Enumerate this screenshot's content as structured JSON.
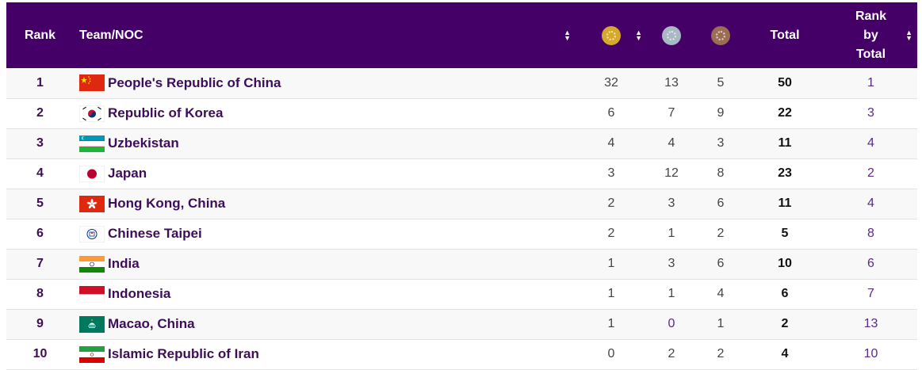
{
  "header": {
    "rank": "Rank",
    "team": "Team/NOC",
    "total": "Total",
    "rank_by_total_1": "Rank",
    "rank_by_total_2": "by",
    "rank_by_total_3": "Total",
    "medals": [
      "gold-medal-icon",
      "silver-medal-icon",
      "bronze-medal-icon"
    ]
  },
  "rows": [
    {
      "rank": "1",
      "team": "People's Republic of China",
      "gold": "32",
      "silver": "13",
      "bronze": "5",
      "total": "50",
      "rank_by_total": "1",
      "flag": "china-flag-icon"
    },
    {
      "rank": "2",
      "team": "Republic of Korea",
      "gold": "6",
      "silver": "7",
      "bronze": "9",
      "total": "22",
      "rank_by_total": "3",
      "flag": "korea-flag-icon"
    },
    {
      "rank": "3",
      "team": "Uzbekistan",
      "gold": "4",
      "silver": "4",
      "bronze": "3",
      "total": "11",
      "rank_by_total": "4",
      "flag": "uzbekistan-flag-icon"
    },
    {
      "rank": "4",
      "team": "Japan",
      "gold": "3",
      "silver": "12",
      "bronze": "8",
      "total": "23",
      "rank_by_total": "2",
      "flag": "japan-flag-icon"
    },
    {
      "rank": "5",
      "team": "Hong Kong, China",
      "gold": "2",
      "silver": "3",
      "bronze": "6",
      "total": "11",
      "rank_by_total": "4",
      "flag": "hong-kong-flag-icon"
    },
    {
      "rank": "6",
      "team": "Chinese Taipei",
      "gold": "2",
      "silver": "1",
      "bronze": "2",
      "total": "5",
      "rank_by_total": "8",
      "flag": "chinese-taipei-flag-icon"
    },
    {
      "rank": "7",
      "team": "India",
      "gold": "1",
      "silver": "3",
      "bronze": "6",
      "total": "10",
      "rank_by_total": "6",
      "flag": "india-flag-icon"
    },
    {
      "rank": "8",
      "team": "Indonesia",
      "gold": "1",
      "silver": "1",
      "bronze": "4",
      "total": "6",
      "rank_by_total": "7",
      "flag": "indonesia-flag-icon"
    },
    {
      "rank": "9",
      "team": "Macao, China",
      "gold": "1",
      "silver": "0",
      "bronze": "1",
      "total": "2",
      "rank_by_total": "13",
      "flag": "macao-flag-icon"
    },
    {
      "rank": "10",
      "team": "Islamic Republic of Iran",
      "gold": "0",
      "silver": "2",
      "bronze": "2",
      "total": "4",
      "rank_by_total": "10",
      "flag": "iran-flag-icon"
    }
  ],
  "colors": {
    "header_bg": "#440066",
    "team_text": "#3d0d5a",
    "rank_by_total_text": "#5a2a8a"
  }
}
